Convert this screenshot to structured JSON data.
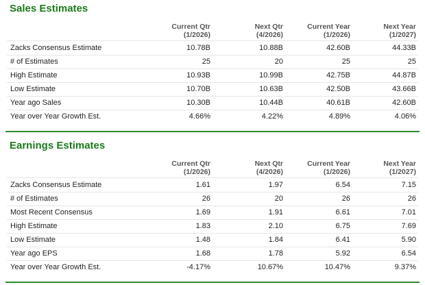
{
  "sections": [
    {
      "title": "Sales Estimates",
      "columns": [
        {
          "name": "Current Qtr",
          "period": "(1/2026)"
        },
        {
          "name": "Next Qtr",
          "period": "(4/2026)"
        },
        {
          "name": "Current Year",
          "period": "(1/2026)"
        },
        {
          "name": "Next Year",
          "period": "(1/2027)"
        }
      ],
      "rows": [
        [
          "Zacks Consensus Estimate",
          "10.78B",
          "10.88B",
          "42.60B",
          "44.33B"
        ],
        [
          "# of Estimates",
          "25",
          "20",
          "25",
          "25"
        ],
        [
          "High Estimate",
          "10.93B",
          "10.99B",
          "42.75B",
          "44.87B"
        ],
        [
          "Low Estimate",
          "10.70B",
          "10.63B",
          "42.50B",
          "43.66B"
        ],
        [
          "Year ago Sales",
          "10.30B",
          "10.44B",
          "40.61B",
          "42.60B"
        ],
        [
          "Year over Year Growth Est.",
          "4.66%",
          "4.22%",
          "4.89%",
          "4.06%"
        ]
      ]
    },
    {
      "title": "Earnings Estimates",
      "columns": [
        {
          "name": "Current Qtr",
          "period": "(1/2026)"
        },
        {
          "name": "Next Qtr",
          "period": "(4/2026)"
        },
        {
          "name": "Current Year",
          "period": "(1/2026)"
        },
        {
          "name": "Next Year",
          "period": "(1/2027)"
        }
      ],
      "rows": [
        [
          "Zacks Consensus Estimate",
          "1.61",
          "1.97",
          "6.54",
          "7.15"
        ],
        [
          "# of Estimates",
          "26",
          "20",
          "26",
          "26"
        ],
        [
          "Most Recent Consensus",
          "1.69",
          "1.91",
          "6.61",
          "7.01"
        ],
        [
          "High Estimate",
          "1.83",
          "2.10",
          "6.75",
          "7.69"
        ],
        [
          "Low Estimate",
          "1.48",
          "1.84",
          "6.41",
          "5.90"
        ],
        [
          "Year ago EPS",
          "1.68",
          "1.78",
          "5.92",
          "6.54"
        ],
        [
          "Year over Year Growth Est.",
          "-4.17%",
          "10.67%",
          "10.47%",
          "9.37%"
        ]
      ]
    }
  ]
}
